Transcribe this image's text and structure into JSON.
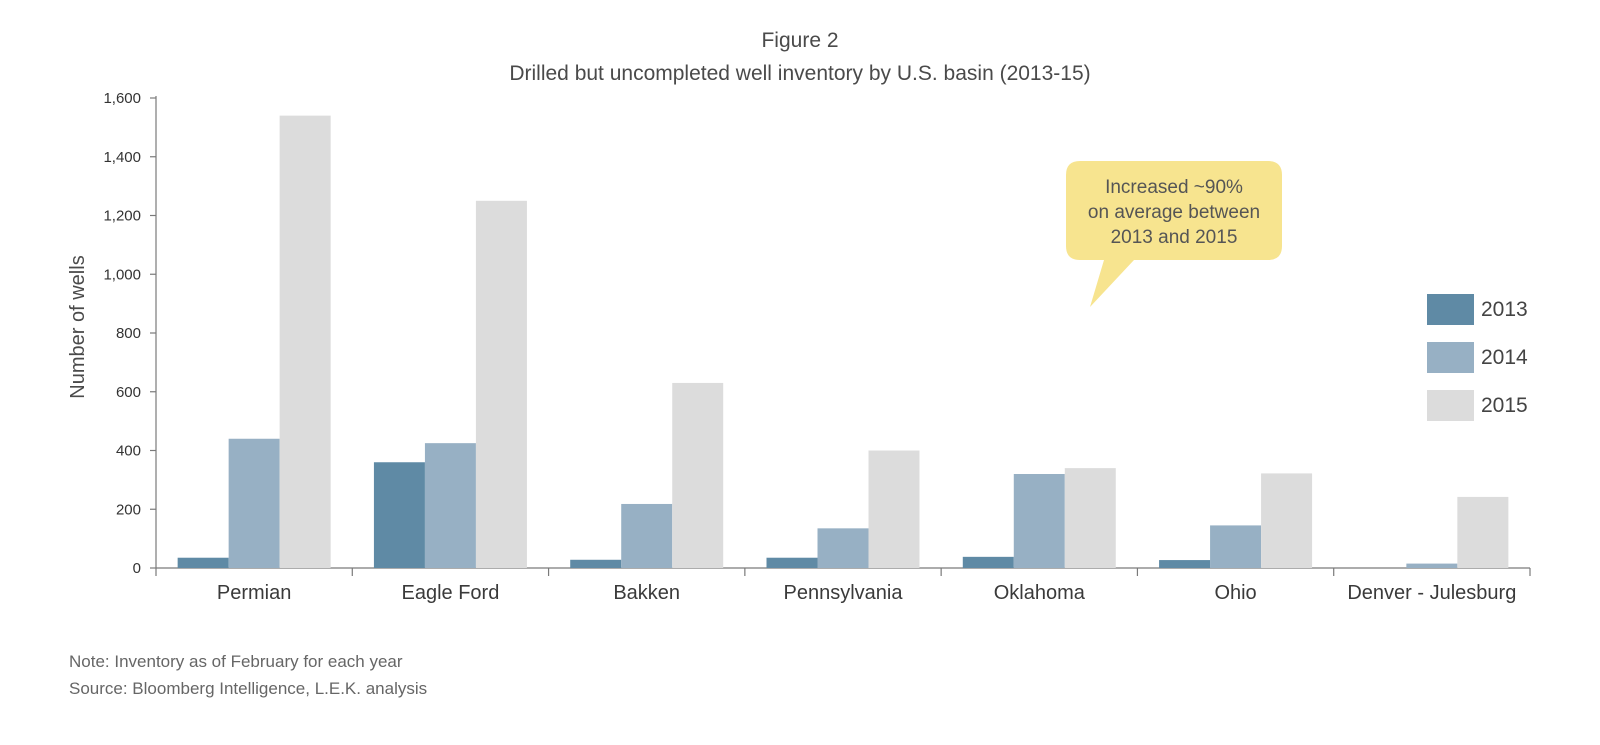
{
  "chart_data": {
    "type": "bar",
    "figure_label": "Figure 2",
    "title": "Drilled but uncompleted well inventory by U.S. basin (2013-15)",
    "xlabel": "",
    "ylabel": "Number of wells",
    "ylim": [
      0,
      1600
    ],
    "yticks": [
      0,
      200,
      400,
      600,
      800,
      1000,
      1200,
      1400,
      1600
    ],
    "ytick_labels": [
      "0",
      "200",
      "400",
      "600",
      "800",
      "1,000",
      "1,200",
      "1,400",
      "1,600"
    ],
    "categories": [
      "Permian",
      "Eagle Ford",
      "Bakken",
      "Pennsylvania",
      "Oklahoma",
      "Ohio",
      "Denver - Julesburg"
    ],
    "series": [
      {
        "name": "2013",
        "color": "#5f8aa5",
        "values": [
          35,
          360,
          28,
          35,
          38,
          27,
          0
        ]
      },
      {
        "name": "2014",
        "color": "#97b0c4",
        "values": [
          440,
          425,
          218,
          135,
          320,
          145,
          15
        ]
      },
      {
        "name": "2015",
        "color": "#dcdcdc",
        "values": [
          1540,
          1250,
          630,
          400,
          340,
          322,
          242
        ]
      }
    ],
    "legend_position": "right",
    "grid": false,
    "annotation": {
      "lines": [
        "Increased ~90%",
        "on average between",
        "2013 and 2015"
      ],
      "color": "#f7e48f"
    }
  },
  "notes": {
    "note": "Note: Inventory as of February for each year",
    "source": "Source: Bloomberg Intelligence, L.E.K. analysis"
  }
}
